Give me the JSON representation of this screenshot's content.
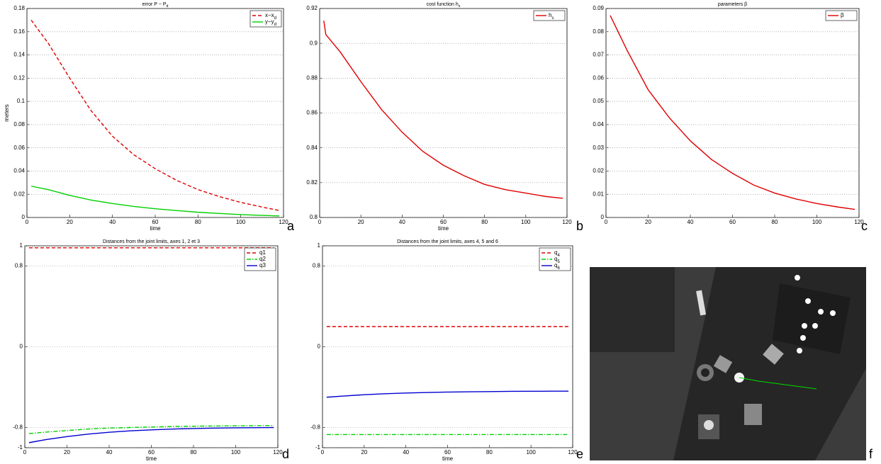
{
  "chart_data": [
    {
      "type": "line",
      "title": "error P − P_d",
      "panel": "a",
      "xlabel": "time",
      "ylabel": "meters",
      "x": [
        2,
        10,
        20,
        30,
        40,
        50,
        60,
        70,
        80,
        90,
        100,
        110,
        118
      ],
      "xlim": [
        0,
        120
      ],
      "xticks": [
        0,
        20,
        40,
        60,
        80,
        100,
        120
      ],
      "ylim": [
        0,
        0.18
      ],
      "yticks": [
        0,
        0.02,
        0.04,
        0.06,
        0.08,
        0.1,
        0.12,
        0.14,
        0.16,
        0.18
      ],
      "grid": "y",
      "legend": "upper right",
      "series": [
        {
          "name": "x−x_d",
          "color": "#e00000",
          "dash": "dashed",
          "values": [
            0.17,
            0.15,
            0.12,
            0.092,
            0.07,
            0.054,
            0.042,
            0.032,
            0.024,
            0.018,
            0.013,
            0.009,
            0.006
          ]
        },
        {
          "name": "y−y_d",
          "color": "#00d000",
          "dash": "solid",
          "values": [
            0.027,
            0.024,
            0.019,
            0.015,
            0.012,
            0.0095,
            0.0075,
            0.006,
            0.0045,
            0.0035,
            0.0025,
            0.0018,
            0.0013
          ]
        }
      ]
    },
    {
      "type": "line",
      "title": "cost function h_s",
      "panel": "b",
      "xlabel": "time",
      "x": [
        2,
        3,
        10,
        20,
        30,
        40,
        50,
        60,
        70,
        80,
        90,
        100,
        110,
        118
      ],
      "xlim": [
        0,
        120
      ],
      "xticks": [
        0,
        20,
        40,
        60,
        80,
        100,
        120
      ],
      "ylim": [
        0.8,
        0.92
      ],
      "yticks": [
        0.8,
        0.82,
        0.84,
        0.86,
        0.88,
        0.9,
        0.92
      ],
      "grid": "y",
      "legend": "upper right",
      "series": [
        {
          "name": "h_s",
          "color": "#e00000",
          "dash": "solid",
          "values": [
            0.913,
            0.905,
            0.895,
            0.878,
            0.862,
            0.849,
            0.838,
            0.83,
            0.824,
            0.819,
            0.816,
            0.814,
            0.812,
            0.811
          ]
        }
      ]
    },
    {
      "type": "line",
      "title": "parameters β",
      "panel": "c",
      "x": [
        2,
        10,
        20,
        30,
        40,
        50,
        60,
        70,
        80,
        90,
        100,
        110,
        118
      ],
      "xlim": [
        0,
        120
      ],
      "xticks": [
        0,
        20,
        40,
        60,
        80,
        100,
        120
      ],
      "ylim": [
        0,
        0.09
      ],
      "yticks": [
        0,
        0.01,
        0.02,
        0.03,
        0.04,
        0.05,
        0.06,
        0.07,
        0.08,
        0.09
      ],
      "grid": "y",
      "legend": "upper right",
      "series": [
        {
          "name": "β",
          "color": "#e00000",
          "dash": "solid",
          "values": [
            0.087,
            0.072,
            0.055,
            0.043,
            0.033,
            0.025,
            0.019,
            0.014,
            0.0105,
            0.008,
            0.006,
            0.0045,
            0.0035
          ]
        }
      ]
    },
    {
      "type": "line",
      "title": "Distances from the joint limits, axes 1, 2 et 3",
      "panel": "d",
      "xlabel": "time",
      "x": [
        2,
        10,
        20,
        30,
        40,
        50,
        60,
        70,
        80,
        90,
        100,
        110,
        118
      ],
      "xlim": [
        0,
        120
      ],
      "xticks": [
        0,
        20,
        40,
        60,
        80,
        100,
        120
      ],
      "ylim": [
        -1,
        1
      ],
      "yticks": [
        -1,
        -0.8,
        0,
        0.8,
        1
      ],
      "grid": "y",
      "legend": "upper right",
      "series": [
        {
          "name": "q1",
          "color": "#e00000",
          "dash": "dashed",
          "values": [
            0.98,
            0.98,
            0.98,
            0.98,
            0.98,
            0.98,
            0.98,
            0.98,
            0.98,
            0.98,
            0.98,
            0.98,
            0.98
          ]
        },
        {
          "name": "q2",
          "color": "#00d000",
          "dash": "dashdot",
          "values": [
            -0.86,
            -0.845,
            -0.83,
            -0.815,
            -0.805,
            -0.8,
            -0.795,
            -0.79,
            -0.787,
            -0.785,
            -0.783,
            -0.782,
            -0.78
          ]
        },
        {
          "name": "q3",
          "color": "#0000d0",
          "dash": "solid",
          "values": [
            -0.95,
            -0.92,
            -0.89,
            -0.865,
            -0.847,
            -0.833,
            -0.823,
            -0.815,
            -0.81,
            -0.806,
            -0.803,
            -0.801,
            -0.8
          ]
        }
      ]
    },
    {
      "type": "line",
      "title": "Distances from the joint limits, axes 4, 5 and 6",
      "panel": "e",
      "xlabel": "time",
      "x": [
        2,
        10,
        20,
        30,
        40,
        50,
        60,
        70,
        80,
        90,
        100,
        110,
        118
      ],
      "xlim": [
        0,
        120
      ],
      "xticks": [
        0,
        20,
        40,
        60,
        80,
        100,
        120
      ],
      "ylim": [
        -1,
        1
      ],
      "yticks": [
        -1,
        -0.8,
        0,
        0.8,
        1
      ],
      "grid": "y",
      "legend": "upper right",
      "series": [
        {
          "name": "q_4",
          "color": "#e00000",
          "dash": "dashed",
          "values": [
            0.2,
            0.2,
            0.2,
            0.2,
            0.2,
            0.2,
            0.2,
            0.2,
            0.2,
            0.2,
            0.2,
            0.2,
            0.2
          ]
        },
        {
          "name": "q_5",
          "color": "#00d000",
          "dash": "dashdot",
          "values": [
            -0.87,
            -0.87,
            -0.87,
            -0.87,
            -0.87,
            -0.87,
            -0.87,
            -0.87,
            -0.87,
            -0.87,
            -0.87,
            -0.87,
            -0.87
          ]
        },
        {
          "name": "q_6",
          "color": "#0000d0",
          "dash": "solid",
          "values": [
            -0.5,
            -0.488,
            -0.475,
            -0.465,
            -0.458,
            -0.453,
            -0.449,
            -0.446,
            -0.444,
            -0.442,
            -0.441,
            -0.44,
            -0.44
          ]
        }
      ]
    }
  ],
  "image_panel": "f"
}
